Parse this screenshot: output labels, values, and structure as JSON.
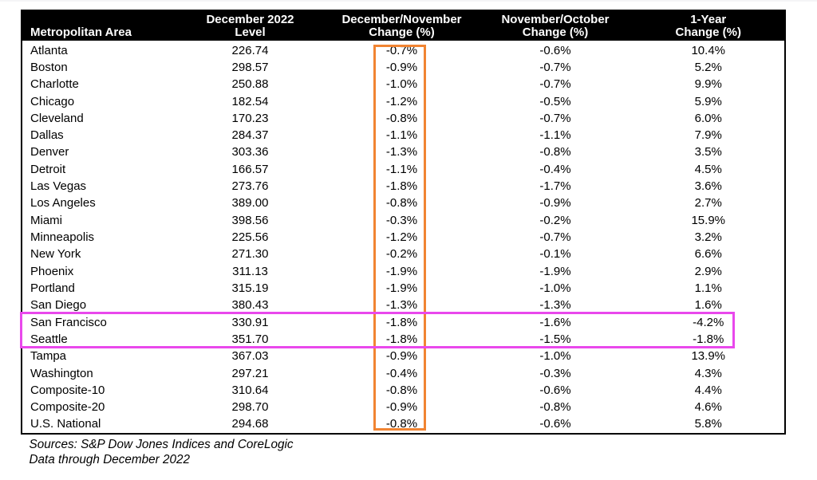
{
  "chart_data": {
    "type": "table",
    "columns": [
      "Metropolitan Area",
      "December 2022\nLevel",
      "December/November\nChange (%)",
      "November/October\nChange (%)",
      "1-Year\nChange (%)"
    ],
    "rows": [
      [
        "Atlanta",
        "226.74",
        "-0.7%",
        "-0.6%",
        "10.4%"
      ],
      [
        "Boston",
        "298.57",
        "-0.9%",
        "-0.7%",
        "5.2%"
      ],
      [
        "Charlotte",
        "250.88",
        "-1.0%",
        "-0.7%",
        "9.9%"
      ],
      [
        "Chicago",
        "182.54",
        "-1.2%",
        "-0.5%",
        "5.9%"
      ],
      [
        "Cleveland",
        "170.23",
        "-0.8%",
        "-0.7%",
        "6.0%"
      ],
      [
        "Dallas",
        "284.37",
        "-1.1%",
        "-1.1%",
        "7.9%"
      ],
      [
        "Denver",
        "303.36",
        "-1.3%",
        "-0.8%",
        "3.5%"
      ],
      [
        "Detroit",
        "166.57",
        "-1.1%",
        "-0.4%",
        "4.5%"
      ],
      [
        "Las Vegas",
        "273.76",
        "-1.8%",
        "-1.7%",
        "3.6%"
      ],
      [
        "Los Angeles",
        "389.00",
        "-0.8%",
        "-0.9%",
        "2.7%"
      ],
      [
        "Miami",
        "398.56",
        "-0.3%",
        "-0.2%",
        "15.9%"
      ],
      [
        "Minneapolis",
        "225.56",
        "-1.2%",
        "-0.7%",
        "3.2%"
      ],
      [
        "New York",
        "271.30",
        "-0.2%",
        "-0.1%",
        "6.6%"
      ],
      [
        "Phoenix",
        "311.13",
        "-1.9%",
        "-1.9%",
        "2.9%"
      ],
      [
        "Portland",
        "315.19",
        "-1.9%",
        "-1.0%",
        "1.1%"
      ],
      [
        "San Diego",
        "380.43",
        "-1.3%",
        "-1.3%",
        "1.6%"
      ],
      [
        "San Francisco",
        "330.91",
        "-1.8%",
        "-1.6%",
        "-4.2%"
      ],
      [
        "Seattle",
        "351.70",
        "-1.8%",
        "-1.5%",
        "-1.8%"
      ],
      [
        "Tampa",
        "367.03",
        "-0.9%",
        "-1.0%",
        "13.9%"
      ],
      [
        "Washington",
        "297.21",
        "-0.4%",
        "-0.3%",
        "4.3%"
      ],
      [
        "Composite-10",
        "310.64",
        "-0.8%",
        "-0.6%",
        "4.4%"
      ],
      [
        "Composite-20",
        "298.70",
        "-0.9%",
        "-0.8%",
        "4.6%"
      ],
      [
        "U.S. National",
        "294.68",
        "-0.8%",
        "-0.6%",
        "5.8%"
      ]
    ],
    "title": "",
    "footnotes": [
      "Sources: S&P Dow Jones Indices and CoreLogic",
      "Data through December 2022"
    ]
  },
  "table_style": {
    "header_bg": "#000000",
    "header_text_color": "#ffffff",
    "body_text_color": "#000000",
    "border_color": "#000000"
  },
  "annotations": {
    "column_highlight": {
      "target": "December/November Change (%) column",
      "color": "#f18432"
    },
    "row_highlight": {
      "target": "San Francisco and Seattle rows",
      "color": "#e948ec"
    }
  }
}
